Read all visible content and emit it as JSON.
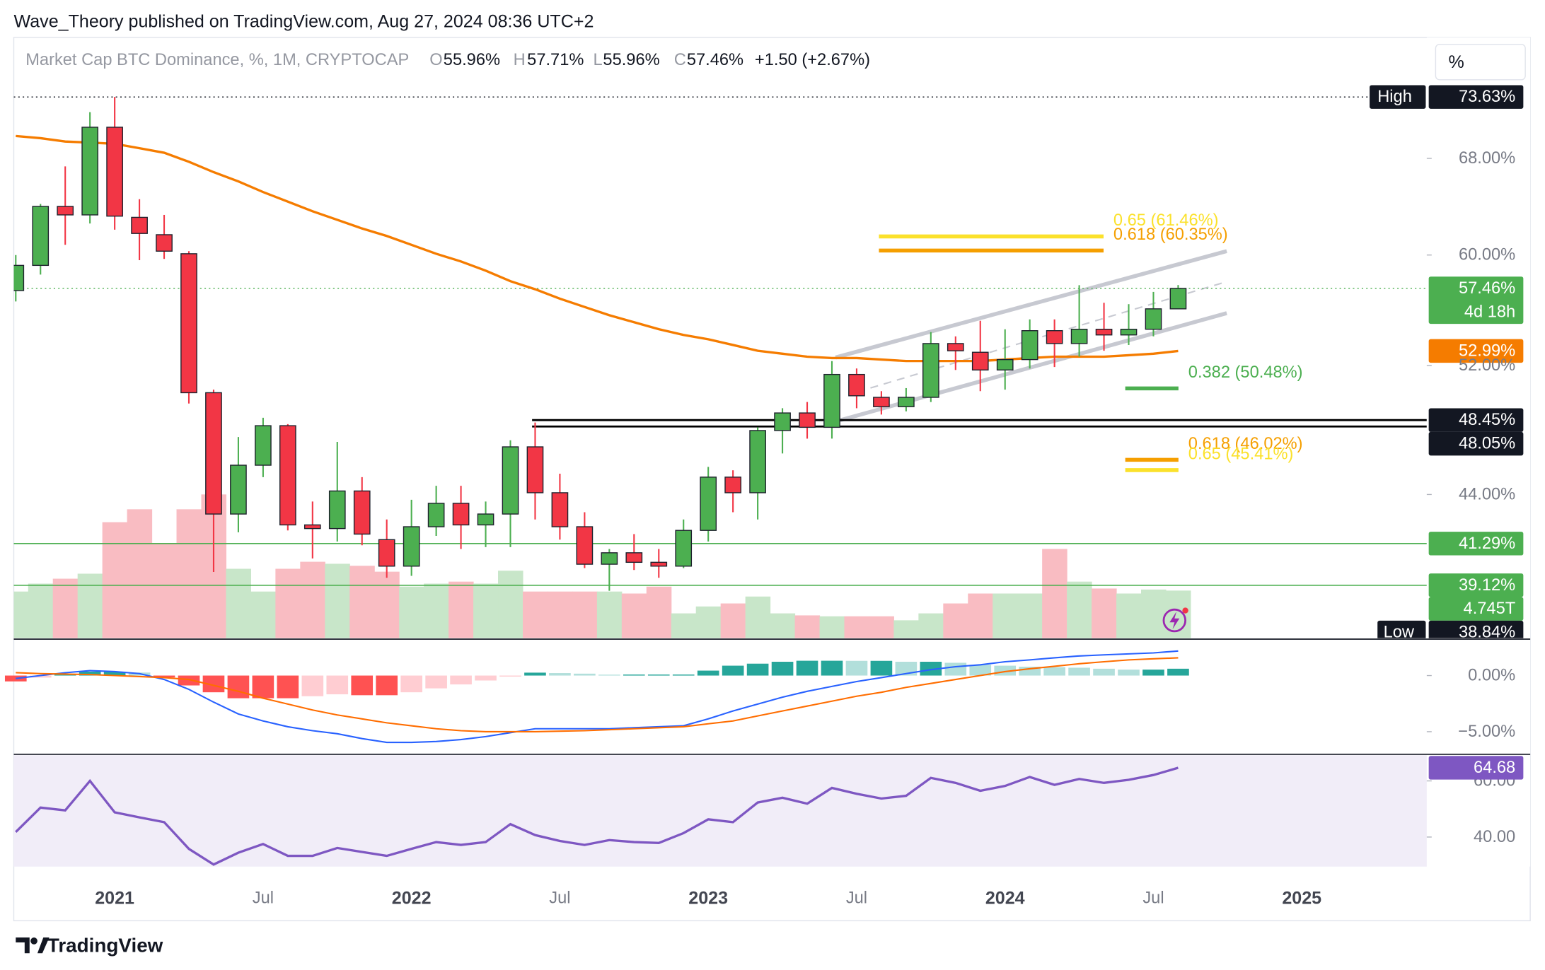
{
  "header": {
    "published": "Wave_Theory published on TradingView.com, Aug 27, 2024 08:36 UTC+2",
    "brand": "TradingView",
    "scale_button": "%"
  },
  "legend": {
    "symbol": "Market Cap BTC Dominance, %, 1M, CRYPTOCAP",
    "open_key": "O",
    "open": "55.96%",
    "high_key": "H",
    "high": "57.71%",
    "low_key": "L",
    "low": "55.96%",
    "close_key": "C",
    "close": "57.46%",
    "change": "+1.50 (+2.67%)"
  },
  "chart_data": [
    {
      "type": "candlestick",
      "x": [
        "2020-09",
        "2020-10",
        "2020-11",
        "2020-12",
        "2021-01",
        "2021-02",
        "2021-03",
        "2021-04",
        "2021-05",
        "2021-06",
        "2021-07",
        "2021-08",
        "2021-09",
        "2021-10",
        "2021-11",
        "2021-12",
        "2022-01",
        "2022-02",
        "2022-03",
        "2022-04",
        "2022-05",
        "2022-06",
        "2022-07",
        "2022-08",
        "2022-09",
        "2022-10",
        "2022-11",
        "2022-12",
        "2023-01",
        "2023-02",
        "2023-03",
        "2023-04",
        "2023-05",
        "2023-06",
        "2023-07",
        "2023-08",
        "2023-09",
        "2023-10",
        "2023-11",
        "2023-12",
        "2024-01",
        "2024-02",
        "2024-03",
        "2024-04",
        "2024-05",
        "2024-06",
        "2024-07",
        "2024-08"
      ],
      "open": [
        57.3,
        59.2,
        63.9,
        63.2,
        70.8,
        63.0,
        61.6,
        60.1,
        50.2,
        42.9,
        45.7,
        48.1,
        42.3,
        42.1,
        44.2,
        41.5,
        40.1,
        42.2,
        43.5,
        42.3,
        42.9,
        46.8,
        44.1,
        42.2,
        40.2,
        40.8,
        40.3,
        40.1,
        42.0,
        45.0,
        44.1,
        47.8,
        48.9,
        48.0,
        51.4,
        49.9,
        49.3,
        49.9,
        53.5,
        52.9,
        51.7,
        52.4,
        54.4,
        53.5,
        54.5,
        54.1,
        54.5,
        55.96
      ],
      "high": [
        60.0,
        64.1,
        67.3,
        72.2,
        73.63,
        64.5,
        63.2,
        60.3,
        50.4,
        47.4,
        48.6,
        48.2,
        43.6,
        47.1,
        45.0,
        42.6,
        43.7,
        44.5,
        44.5,
        43.6,
        47.2,
        48.3,
        45.2,
        43.0,
        41.0,
        41.8,
        41.0,
        42.6,
        45.6,
        45.4,
        48.0,
        49.2,
        49.6,
        52.3,
        51.8,
        50.3,
        50.5,
        54.3,
        54.0,
        55.1,
        54.5,
        55.2,
        55.2,
        57.7,
        56.4,
        56.3,
        57.2,
        57.71
      ],
      "low": [
        56.5,
        58.5,
        60.8,
        62.5,
        62.0,
        59.6,
        59.7,
        49.5,
        39.8,
        41.9,
        45.0,
        42.0,
        40.5,
        41.4,
        41.2,
        39.5,
        39.6,
        41.7,
        41.0,
        41.1,
        41.1,
        42.6,
        41.5,
        40.0,
        38.84,
        39.9,
        39.5,
        40.0,
        41.4,
        43.0,
        42.6,
        46.4,
        47.3,
        47.3,
        49.2,
        48.8,
        49.0,
        49.6,
        51.7,
        50.3,
        50.4,
        51.8,
        51.9,
        52.6,
        53.0,
        53.4,
        54.0,
        55.96
      ],
      "close": [
        59.2,
        63.9,
        63.2,
        70.8,
        63.1,
        61.7,
        60.3,
        50.2,
        42.9,
        45.7,
        48.1,
        42.3,
        42.1,
        44.2,
        41.8,
        40.1,
        42.2,
        43.5,
        42.3,
        42.9,
        46.8,
        44.1,
        42.2,
        40.2,
        40.8,
        40.3,
        40.1,
        42.0,
        45.0,
        44.1,
        47.8,
        48.9,
        48.0,
        51.4,
        50.0,
        49.3,
        49.9,
        53.5,
        53.0,
        51.7,
        52.4,
        54.4,
        53.5,
        54.5,
        54.1,
        54.5,
        55.96,
        57.46
      ],
      "up_color": "#4caf50",
      "down_color": "#f23645",
      "log_scale": true,
      "ylim": [
        36.53,
        79.33
      ],
      "yticks": [
        {
          "value": 68,
          "label": "68.00%"
        },
        {
          "value": 60,
          "label": "60.00%"
        },
        {
          "value": 52,
          "label": "52.00%"
        },
        {
          "value": 44,
          "label": "44.00%"
        }
      ],
      "xticks": [
        {
          "value": "2021-01",
          "label": "2021"
        },
        {
          "value": "2021-07",
          "label": "Jul"
        },
        {
          "value": "2022-01",
          "label": "2022"
        },
        {
          "value": "2022-07",
          "label": "Jul"
        },
        {
          "value": "2023-01",
          "label": "2023"
        },
        {
          "value": "2023-07",
          "label": "Jul"
        },
        {
          "value": "2024-01",
          "label": "2024"
        },
        {
          "value": "2024-07",
          "label": "Jul"
        },
        {
          "value": "2025-01",
          "label": "2025"
        }
      ],
      "ma": {
        "color": "#f57c00",
        "last_label": "52.99%",
        "values": [
          70.0,
          69.8,
          69.5,
          69.4,
          69.3,
          68.9,
          68.5,
          67.7,
          66.8,
          66.0,
          65.1,
          64.3,
          63.5,
          62.8,
          62.1,
          61.5,
          60.8,
          60.1,
          59.5,
          58.8,
          58.0,
          57.4,
          56.7,
          56.1,
          55.5,
          55.0,
          54.5,
          54.1,
          53.8,
          53.4,
          53.0,
          52.8,
          52.6,
          52.5,
          52.5,
          52.4,
          52.3,
          52.3,
          52.3,
          52.3,
          52.4,
          52.5,
          52.6,
          52.6,
          52.6,
          52.7,
          52.8,
          52.99
        ]
      },
      "volume": {
        "up_color": "#c8e6c9",
        "down_color": "#f9bcc2",
        "last_label": "4.745T",
        "values": [
          4.65,
          5.44,
          5.93,
          6.43,
          11.57,
          12.86,
          9.4,
          12.86,
          14.34,
          6.92,
          4.65,
          6.92,
          7.62,
          7.42,
          7.22,
          6.63,
          5.14,
          5.44,
          5.64,
          5.44,
          6.73,
          4.65,
          4.65,
          4.65,
          4.65,
          4.45,
          5.14,
          2.47,
          3.16,
          3.46,
          4.15,
          2.47,
          2.27,
          2.18,
          2.18,
          2.18,
          1.78,
          2.47,
          3.46,
          4.45,
          4.45,
          4.45,
          8.9,
          5.64,
          4.95,
          4.45,
          4.85,
          4.745
        ]
      },
      "last_price": {
        "label": "57.46%",
        "countdown": "4d 18h",
        "color": "#4caf50"
      },
      "high_mark": {
        "name": "High",
        "value": 73.63,
        "label": "73.63%"
      },
      "low_mark": {
        "name": "Low",
        "value": 38.84,
        "label": "38.84%"
      },
      "levels": [
        {
          "value": 48.45,
          "label": "48.45%",
          "color": "#000000"
        },
        {
          "value": 48.05,
          "label": "48.05%",
          "color": "#000000"
        },
        {
          "value": 41.29,
          "label": "41.29%",
          "color": "#4caf50"
        },
        {
          "value": 39.12,
          "label": "39.12%",
          "color": "#4caf50"
        }
      ],
      "fibs": [
        {
          "label": "0.65 (61.46%)",
          "value": 61.46,
          "color": "#fbe12b"
        },
        {
          "label": "0.618 (60.35%)",
          "value": 60.35,
          "color": "#f59f00"
        },
        {
          "label": "0.382 (50.48%)",
          "value": 50.48,
          "color": "#4caf50"
        },
        {
          "label": "0.618 (46.02%)",
          "value": 46.02,
          "color": "#f59f00"
        },
        {
          "label": "0.65 (45.41%)",
          "value": 45.41,
          "color": "#fbe12b"
        }
      ]
    },
    {
      "type": "macd",
      "ylim": [
        -6.93,
        3.16
      ],
      "yticks": [
        {
          "value": 0,
          "label": "0.00%"
        },
        {
          "value": -5,
          "label": "−5.00%"
        }
      ],
      "macd": {
        "color": "#2962ff",
        "values": [
          -0.26,
          0,
          0.26,
          0.44,
          0.35,
          0.18,
          -0.35,
          -1.23,
          -2.37,
          -3.42,
          -4.04,
          -4.56,
          -4.91,
          -5.18,
          -5.61,
          -5.96,
          -5.96,
          -5.88,
          -5.7,
          -5.44,
          -5.09,
          -4.74,
          -4.74,
          -4.74,
          -4.74,
          -4.65,
          -4.56,
          -4.47,
          -3.86,
          -3.16,
          -2.54,
          -1.93,
          -1.4,
          -0.96,
          -0.53,
          -0.18,
          0.18,
          0.53,
          0.79,
          0.96,
          1.23,
          1.4,
          1.58,
          1.75,
          1.84,
          1.93,
          2.02,
          2.19
        ]
      },
      "signal": {
        "color": "#ff6d00",
        "values": [
          0.26,
          0.18,
          0.13,
          0.09,
          0,
          -0.09,
          -0.18,
          -0.35,
          -0.88,
          -1.4,
          -2.02,
          -2.54,
          -3.07,
          -3.51,
          -3.86,
          -4.21,
          -4.47,
          -4.74,
          -4.91,
          -5.0,
          -5.0,
          -5.0,
          -4.96,
          -4.91,
          -4.82,
          -4.74,
          -4.65,
          -4.56,
          -4.3,
          -4.04,
          -3.6,
          -3.16,
          -2.72,
          -2.28,
          -1.84,
          -1.49,
          -1.05,
          -0.7,
          -0.35,
          0,
          0.35,
          0.61,
          0.83,
          1.05,
          1.23,
          1.4,
          1.49,
          1.58
        ]
      },
      "histogram": {
        "colors": {
          "rising_up": "#26a69a",
          "falling_up": "#b2dfdb",
          "falling_down": "#ff5252",
          "rising_down": "#ffcdd2"
        },
        "values": [
          -0.52,
          -0.18,
          0.13,
          0.35,
          0.35,
          0.27,
          -0.17,
          -0.88,
          -1.49,
          -2.02,
          -2.02,
          -2.02,
          -1.84,
          -1.67,
          -1.75,
          -1.75,
          -1.49,
          -1.14,
          -0.79,
          -0.44,
          -0.09,
          0.26,
          0.22,
          0.17,
          0.08,
          0.09,
          0.09,
          0.09,
          0.44,
          0.88,
          1.06,
          1.23,
          1.32,
          1.32,
          1.31,
          1.31,
          1.23,
          1.23,
          1.14,
          0.96,
          0.88,
          0.79,
          0.75,
          0.7,
          0.61,
          0.53,
          0.53,
          0.61
        ]
      }
    },
    {
      "type": "line",
      "ylim": [
        29.47,
        69.12
      ],
      "yticks": [
        {
          "value": 60,
          "label": "60.00"
        },
        {
          "value": 40,
          "label": "40.00"
        }
      ],
      "color": "#7e57c2",
      "band_color": "#f1edf8",
      "last_label": "64.68",
      "values": [
        41.8,
        50.5,
        49.5,
        60.0,
        48.8,
        47.0,
        45.3,
        35.8,
        30.2,
        34.4,
        37.5,
        33.3,
        33.3,
        36.1,
        34.7,
        33.3,
        35.8,
        38.2,
        37.2,
        38.2,
        44.6,
        40.7,
        38.6,
        37.2,
        38.9,
        38.2,
        37.9,
        41.4,
        46.3,
        45.3,
        52.3,
        54.0,
        51.9,
        57.5,
        55.4,
        53.7,
        54.7,
        61.1,
        59.3,
        56.5,
        58.2,
        61.4,
        58.6,
        60.7,
        59.3,
        60.4,
        62.1,
        64.68
      ]
    }
  ]
}
